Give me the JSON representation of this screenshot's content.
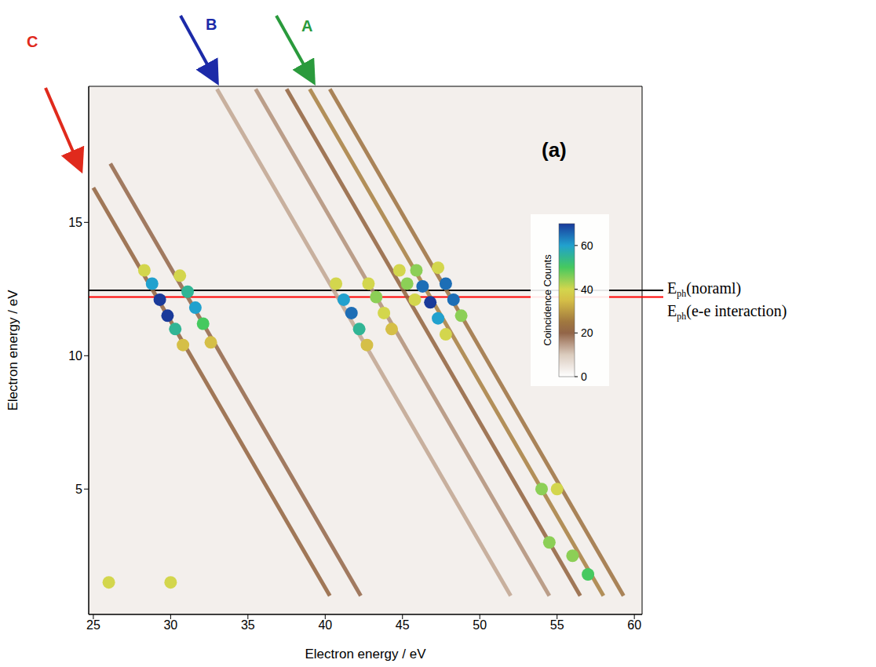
{
  "chart_data": {
    "type": "heatmap",
    "x_label": "Electron energy / eV",
    "y_label": "Electron energy / eV",
    "xlim": [
      24.7,
      60.5
    ],
    "ylim": [
      0.3,
      20.1
    ],
    "xticks": [
      25,
      30,
      35,
      40,
      45,
      50,
      55,
      60
    ],
    "yticks": [
      5,
      10,
      15
    ],
    "panel_label": "(a)",
    "colorbar": {
      "label": "Coincidence Counts",
      "range": [
        0,
        70
      ],
      "ticks": [
        0,
        20,
        40,
        60
      ]
    },
    "annotations": [
      {
        "text": "A",
        "color": "#2a9a3c"
      },
      {
        "text": "B",
        "color": "#1c2aa8"
      },
      {
        "text": "C",
        "color": "#e02a1c"
      }
    ],
    "hlines": [
      {
        "y": 12.45,
        "color": "#000000",
        "label": "E",
        "label_sub": "ph",
        "label_rest": "(noraml)"
      },
      {
        "y": 12.2,
        "color": "#ff0000",
        "label": "E",
        "label_sub": "ph",
        "label_rest": "(e-e interaction)"
      }
    ],
    "stripes": [
      {
        "x": [
          25,
          40.3
        ],
        "y": [
          16.3,
          1
        ],
        "count": 22
      },
      {
        "x": [
          26.1,
          42.3
        ],
        "y": [
          17.2,
          1
        ],
        "count": 20
      },
      {
        "x": [
          33,
          52
        ],
        "y": [
          20,
          1
        ],
        "count": 14
      },
      {
        "x": [
          35.5,
          54.5
        ],
        "y": [
          20,
          1
        ],
        "count": 16
      },
      {
        "x": [
          37.5,
          56.5
        ],
        "y": [
          20,
          1
        ],
        "count": 22
      },
      {
        "x": [
          39,
          58
        ],
        "y": [
          20,
          1
        ],
        "count": 26
      },
      {
        "x": [
          40.3,
          59.3
        ],
        "y": [
          20,
          1
        ],
        "count": 24
      }
    ],
    "cells": [
      {
        "x": 28.3,
        "y": 13.2,
        "count": 40
      },
      {
        "x": 28.8,
        "y": 12.7,
        "count": 60
      },
      {
        "x": 29.3,
        "y": 12.1,
        "count": 70
      },
      {
        "x": 29.8,
        "y": 11.5,
        "count": 70
      },
      {
        "x": 30.3,
        "y": 11,
        "count": 55
      },
      {
        "x": 30.8,
        "y": 10.4,
        "count": 35
      },
      {
        "x": 30.6,
        "y": 13,
        "count": 40
      },
      {
        "x": 31.1,
        "y": 12.4,
        "count": 55
      },
      {
        "x": 31.6,
        "y": 11.8,
        "count": 60
      },
      {
        "x": 32.1,
        "y": 11.2,
        "count": 50
      },
      {
        "x": 32.6,
        "y": 10.5,
        "count": 35
      },
      {
        "x": 40.7,
        "y": 12.7,
        "count": 40
      },
      {
        "x": 41.2,
        "y": 12.1,
        "count": 60
      },
      {
        "x": 41.7,
        "y": 11.6,
        "count": 65
      },
      {
        "x": 42.2,
        "y": 11,
        "count": 55
      },
      {
        "x": 42.7,
        "y": 10.4,
        "count": 35
      },
      {
        "x": 42.8,
        "y": 12.7,
        "count": 40
      },
      {
        "x": 43.3,
        "y": 12.2,
        "count": 45
      },
      {
        "x": 43.8,
        "y": 11.6,
        "count": 40
      },
      {
        "x": 44.3,
        "y": 11,
        "count": 35
      },
      {
        "x": 44.8,
        "y": 13.2,
        "count": 40
      },
      {
        "x": 45.3,
        "y": 12.7,
        "count": 45
      },
      {
        "x": 45.8,
        "y": 12.1,
        "count": 40
      },
      {
        "x": 45.9,
        "y": 13.2,
        "count": 45
      },
      {
        "x": 46.3,
        "y": 12.6,
        "count": 65
      },
      {
        "x": 46.8,
        "y": 12,
        "count": 70
      },
      {
        "x": 47.3,
        "y": 11.4,
        "count": 60
      },
      {
        "x": 47.8,
        "y": 10.8,
        "count": 40
      },
      {
        "x": 47.3,
        "y": 13.3,
        "count": 40
      },
      {
        "x": 47.8,
        "y": 12.7,
        "count": 65
      },
      {
        "x": 48.3,
        "y": 12.1,
        "count": 65
      },
      {
        "x": 48.8,
        "y": 11.5,
        "count": 45
      },
      {
        "x": 54,
        "y": 5,
        "count": 45
      },
      {
        "x": 55,
        "y": 5,
        "count": 40
      },
      {
        "x": 54.5,
        "y": 3,
        "count": 45
      },
      {
        "x": 56,
        "y": 2.5,
        "count": 45
      },
      {
        "x": 57,
        "y": 1.8,
        "count": 50
      },
      {
        "x": 26,
        "y": 1.5,
        "count": 40
      },
      {
        "x": 30,
        "y": 1.5,
        "count": 40
      }
    ]
  }
}
